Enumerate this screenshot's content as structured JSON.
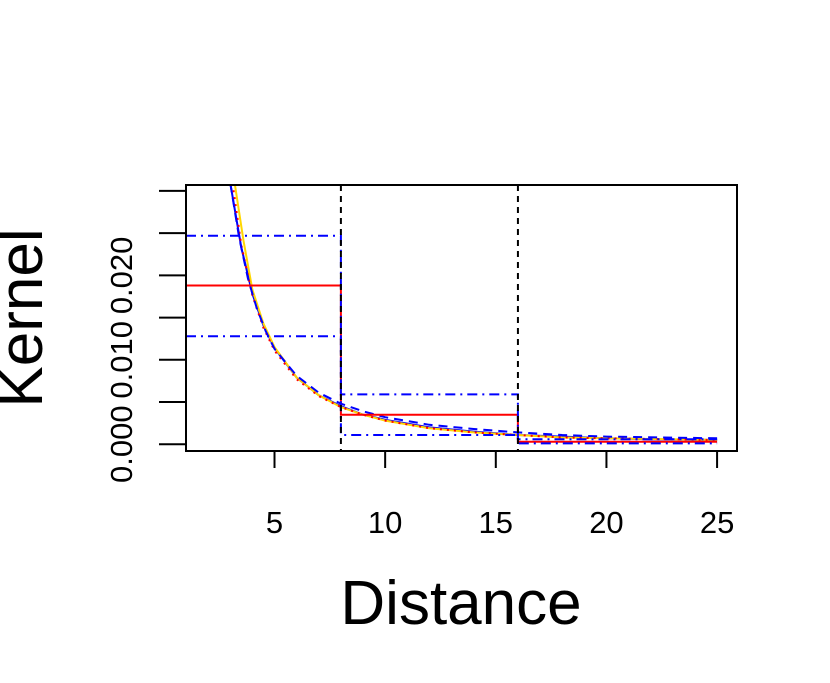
{
  "chart_data": {
    "type": "line",
    "title": "",
    "xlabel": "Distance",
    "ylabel": "Kernel",
    "xlim": [
      1,
      25.9
    ],
    "ylim": [
      -0.0008,
      0.0307
    ],
    "x_ticks": [
      5,
      10,
      15,
      20,
      25
    ],
    "x_tick_labels": [
      "5",
      "10",
      "15",
      "20",
      "25"
    ],
    "y_ticks": [
      0,
      0.005,
      0.01,
      0.015,
      0.02,
      0.025,
      0.03
    ],
    "y_tick_labels": [
      "0.000",
      "",
      "0.010",
      "",
      "0.020",
      "",
      ""
    ],
    "grid": false,
    "legend": "none",
    "break_points": [
      8,
      16
    ],
    "series": [
      {
        "color": "#0000ff",
        "style": "solid",
        "kind": "curve",
        "x": [
          3.0,
          3.5,
          4.0,
          4.5,
          5.0,
          6.0,
          7.0,
          8.0,
          9.0,
          10.0,
          12.0,
          14.0,
          16.0,
          18.0,
          20.0,
          22.0,
          25.0
        ],
        "y": [
          0.0309,
          0.0233,
          0.0178,
          0.0141,
          0.0114,
          0.0079,
          0.0058,
          0.0045,
          0.0035,
          0.0029,
          0.002,
          0.0015,
          0.0011,
          0.0009,
          0.0007,
          0.0006,
          0.0005
        ]
      },
      {
        "color": "#ffd700",
        "style": "solid",
        "kind": "curve",
        "x": [
          3.2,
          3.6,
          4.0,
          4.5,
          5.0,
          6.0,
          7.0,
          8.0,
          9.0,
          10.0,
          12.0,
          14.0,
          16.0,
          18.0,
          20.0,
          25.0
        ],
        "y": [
          0.0309,
          0.0241,
          0.0183,
          0.0143,
          0.0115,
          0.0079,
          0.0058,
          0.0044,
          0.0035,
          0.0028,
          0.0019,
          0.0014,
          0.0011,
          0.0008,
          0.0007,
          0.0005
        ]
      },
      {
        "color": "#ff0000",
        "style": "dotted",
        "kind": "curve",
        "x": [
          3.1,
          3.5,
          4.0,
          4.5,
          5.0,
          6.0,
          7.0,
          8.0,
          9.0,
          10.0,
          12.0,
          14.0,
          16.0,
          18.0,
          20.0,
          25.0
        ],
        "y": [
          0.0309,
          0.0236,
          0.0176,
          0.0138,
          0.0111,
          0.0077,
          0.0057,
          0.0044,
          0.0035,
          0.0028,
          0.0019,
          0.0014,
          0.0011,
          0.0008,
          0.0007,
          0.0005
        ]
      },
      {
        "color": "#0000ff",
        "style": "dashed",
        "kind": "curve",
        "x": [
          3.0,
          3.4,
          3.8,
          4.2,
          4.6,
          5.0,
          6.0,
          7.0,
          8.0,
          9.0,
          10.0,
          12.0,
          14.0,
          16.0,
          18.0,
          20.0,
          25.0
        ],
        "y": [
          0.0309,
          0.0245,
          0.0196,
          0.0161,
          0.0134,
          0.0113,
          0.0081,
          0.0061,
          0.0048,
          0.0039,
          0.0032,
          0.0023,
          0.0018,
          0.0014,
          0.0011,
          0.0009,
          0.0007
        ]
      },
      {
        "color": "#ff0000",
        "style": "solid",
        "kind": "step",
        "x": [
          1.0,
          8.0,
          8.0,
          16.0,
          16.0,
          25.0
        ],
        "y": [
          0.0188,
          0.0188,
          0.0035,
          0.0035,
          0.0003,
          0.0003
        ]
      },
      {
        "color": "#0000ff",
        "style": "dashdot",
        "kind": "step",
        "x": [
          1.0,
          8.0,
          8.0,
          16.0,
          16.0,
          25.0
        ],
        "y": [
          0.0247,
          0.0247,
          0.0059,
          0.0059,
          0.0006,
          0.0006
        ]
      },
      {
        "color": "#0000ff",
        "style": "dashdot",
        "kind": "step",
        "x": [
          1.0,
          8.0,
          8.0,
          16.0,
          16.0,
          25.0
        ],
        "y": [
          0.0128,
          0.0128,
          0.0011,
          0.0011,
          0.0001,
          0.0001
        ]
      }
    ]
  }
}
